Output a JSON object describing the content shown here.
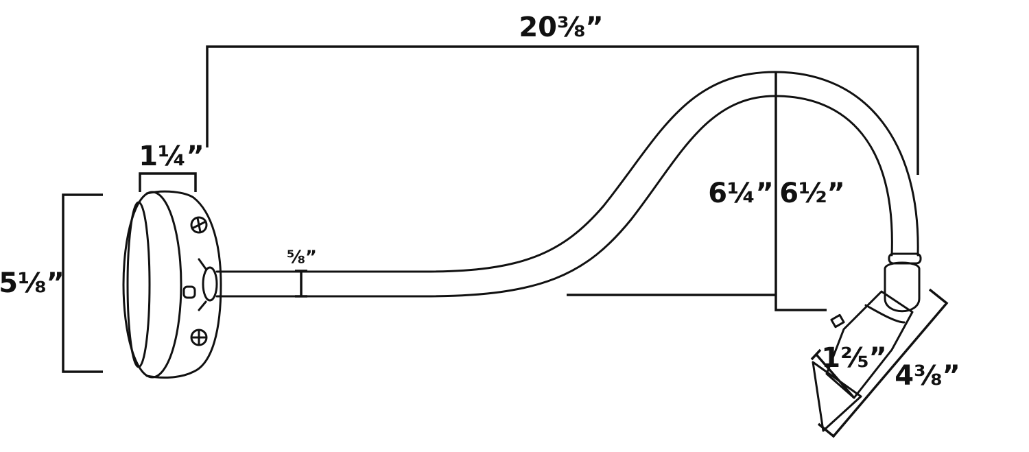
{
  "dimension_labels": {
    "overall_length": "20⅜”",
    "plate_depth": "1¼”",
    "plate_height": "5⅛”",
    "arm_diameter": "⅝”",
    "inner_rise": "6¼”",
    "outer_rise": "6½”",
    "shade_width": "1⅖”",
    "shade_length": "4⅜”"
  }
}
